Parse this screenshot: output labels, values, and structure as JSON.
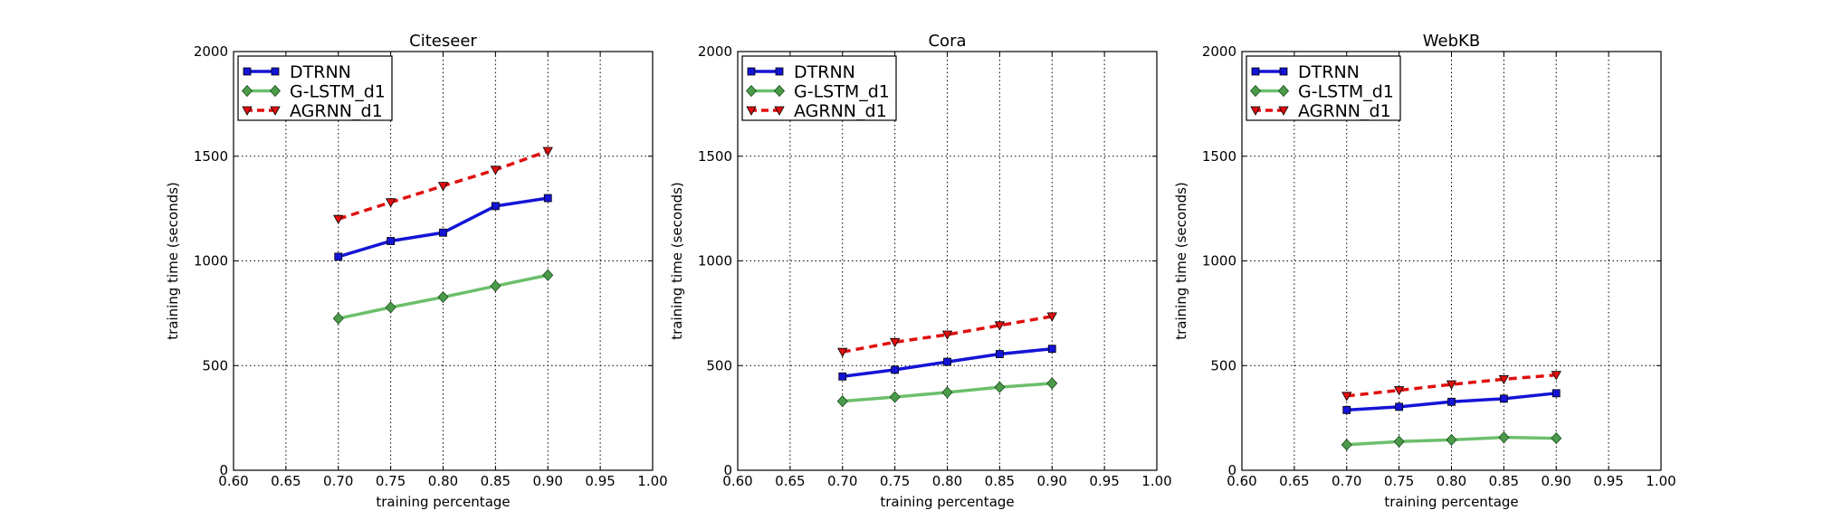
{
  "chart_data": [
    {
      "type": "line",
      "title": "Citeseer",
      "xlabel": "training percentage",
      "ylabel": "training time (seconds)",
      "xlim": [
        0.6,
        1.0
      ],
      "ylim": [
        0,
        2000
      ],
      "xticks": [
        "0.60",
        "0.65",
        "0.70",
        "0.75",
        "0.80",
        "0.85",
        "0.90",
        "0.95",
        "1.00"
      ],
      "yticks": [
        "0",
        "500",
        "1000",
        "1500",
        "2000"
      ],
      "grid": true,
      "legend_position": "top-left",
      "x": [
        0.7,
        0.75,
        0.8,
        0.85,
        0.9
      ],
      "series": [
        {
          "name": "DTRNN",
          "values": [
            1020,
            1095,
            1135,
            1262,
            1300
          ]
        },
        {
          "name": "G-LSTM_d1",
          "values": [
            725,
            778,
            827,
            880,
            932
          ]
        },
        {
          "name": "AGRNN_d1",
          "values": [
            1200,
            1280,
            1358,
            1435,
            1525
          ]
        }
      ]
    },
    {
      "type": "line",
      "title": "Cora",
      "xlabel": "training percentage",
      "ylabel": "training time (seconds)",
      "xlim": [
        0.6,
        1.0
      ],
      "ylim": [
        0,
        2000
      ],
      "xticks": [
        "0.60",
        "0.65",
        "0.70",
        "0.75",
        "0.80",
        "0.85",
        "0.90",
        "0.95",
        "1.00"
      ],
      "yticks": [
        "0",
        "500",
        "1000",
        "1500",
        "2000"
      ],
      "grid": true,
      "legend_position": "top-left",
      "x": [
        0.7,
        0.75,
        0.8,
        0.85,
        0.9
      ],
      "series": [
        {
          "name": "DTRNN",
          "values": [
            448,
            480,
            518,
            555,
            580
          ]
        },
        {
          "name": "G-LSTM_d1",
          "values": [
            330,
            350,
            372,
            397,
            415
          ]
        },
        {
          "name": "AGRNN_d1",
          "values": [
            565,
            612,
            648,
            692,
            735
          ]
        }
      ]
    },
    {
      "type": "line",
      "title": "WebKB",
      "xlabel": "training percentage",
      "ylabel": "training time (seconds)",
      "xlim": [
        0.6,
        1.0
      ],
      "ylim": [
        0,
        2000
      ],
      "xticks": [
        "0.60",
        "0.65",
        "0.70",
        "0.75",
        "0.80",
        "0.85",
        "0.90",
        "0.95",
        "1.00"
      ],
      "yticks": [
        "0",
        "500",
        "1000",
        "1500",
        "2000"
      ],
      "grid": true,
      "legend_position": "top-left",
      "x": [
        0.7,
        0.75,
        0.8,
        0.85,
        0.9
      ],
      "series": [
        {
          "name": "DTRNN",
          "values": [
            288,
            303,
            327,
            342,
            368
          ]
        },
        {
          "name": "G-LSTM_d1",
          "values": [
            122,
            137,
            145,
            157,
            153
          ]
        },
        {
          "name": "AGRNN_d1",
          "values": [
            355,
            382,
            410,
            435,
            455
          ]
        }
      ]
    }
  ],
  "colors": {
    "DTRNN": "#1414d6",
    "G-LSTM_d1": "#6cbf6c",
    "G-LSTM_d1_marker": "#4a9a4a",
    "AGRNN_d1": "#e00f0f"
  }
}
